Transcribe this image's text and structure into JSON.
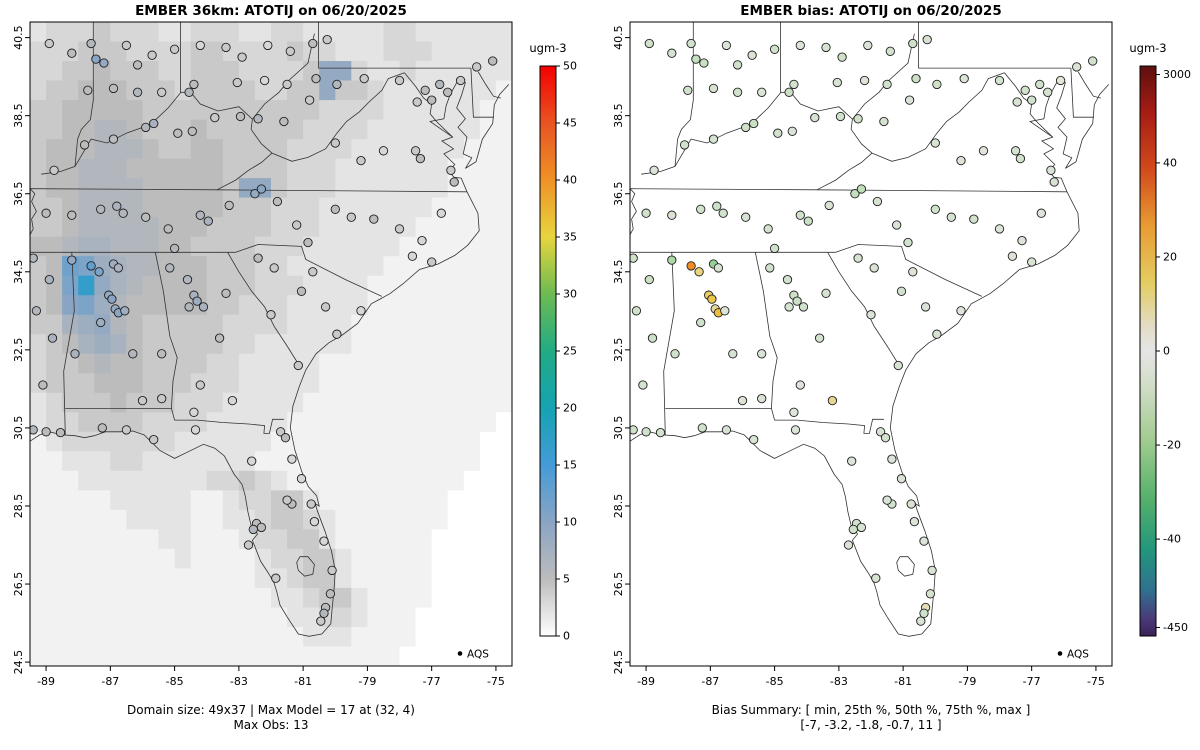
{
  "figure": {
    "background_color": "#ffffff",
    "legend_label": "AQS"
  },
  "axes": {
    "xlim": [
      -89.5,
      -74.5
    ],
    "ylim": [
      24.4,
      40.9
    ],
    "x_ticks": [
      -89,
      -87,
      -85,
      -83,
      -81,
      -79,
      -77,
      -75
    ],
    "y_ticks": [
      24.5,
      26.5,
      28.5,
      30.5,
      32.5,
      34.5,
      36.5,
      38.5,
      40.5
    ]
  },
  "chart_data": [
    {
      "type": "heatmap",
      "title": "EMBER 36km: ATOTIJ on 06/20/2025",
      "domain_size": "49x37",
      "max_model": 17,
      "max_model_at": "(32, 4)",
      "max_obs": 13,
      "caption": [
        "Domain size: 49x37 | Max Model = 17 at (32, 4)",
        "Max Obs: 13"
      ],
      "point_field": "obs",
      "colorbar": {
        "label": "ugm-3",
        "domain": [
          0,
          50
        ],
        "ticks": [
          0,
          5,
          10,
          15,
          20,
          25,
          30,
          35,
          40,
          45,
          50
        ],
        "stops": [
          [
            0,
            "#ffffff"
          ],
          [
            5,
            "#bcbcbc"
          ],
          [
            10,
            "#8aa5c4"
          ],
          [
            15,
            "#449bd8"
          ],
          [
            20,
            "#16a3b2"
          ],
          [
            25,
            "#22ab84"
          ],
          [
            30,
            "#6cbb51"
          ],
          [
            35,
            "#e8d53e"
          ],
          [
            40,
            "#ef9227"
          ],
          [
            45,
            "#e85422"
          ],
          [
            50,
            "#f40000"
          ]
        ]
      },
      "raster": {
        "x0": -89.5,
        "y0_top": 40.9,
        "cell": 0.5,
        "rows": [
          [
            "2333433322",
            "3332233222",
            "2233222222"
          ],
          [
            "3334443333",
            "4433334332",
            "2233322222"
          ],
          [
            "3344544433",
            "4443333499",
            "3223222222"
          ],
          [
            "3445554443",
            "4444334494",
            "4322222221"
          ],
          [
            "4455555444",
            "4444444433",
            "3322222211"
          ],
          [
            "4455665444",
            "5444444333",
            "3222222211"
          ],
          [
            "4555666544",
            "5544443333",
            "2222222111"
          ],
          [
            "4556665555",
            "5544443332",
            "2222221111"
          ],
          [
            "4556666555",
            "5549943332",
            "2222221111"
          ],
          [
            "4456666555",
            "5544433322",
            "2222211111"
          ],
          [
            "4456666655",
            "5444433322",
            "2222111111"
          ],
          [
            "5567766655",
            "4444333222",
            "2221111111"
          ],
          [
            "45cb876655",
            "5444332222",
            "2211111111"
          ],
          [
            "45bh976555",
            "5444333222",
            "2111111111"
          ],
          [
            "45ab865555",
            "5443332222",
            "2111111111"
          ],
          [
            "4478965444",
            "4433332222",
            "1111111111"
          ],
          [
            "3457875444",
            "4433222222",
            "1111111111"
          ],
          [
            "3445655444",
            "4332222211",
            "1111111111"
          ],
          [
            "3444555444",
            "3332222211",
            "1111111111"
          ],
          [
            "2344454443",
            "3322222111",
            "1111111111"
          ],
          [
            "2334444333",
            "3222221111",
            "1111111110"
          ],
          [
            "1233333332",
            "2222211111",
            "1111111100"
          ],
          [
            "1122233222",
            "2222111111",
            "1111111100"
          ],
          [
            "1112222222",
            "2334321111",
            "1111111000"
          ],
          [
            "1111122222",
            "1123344211",
            "1111110000"
          ],
          [
            "1111112222",
            "1122344321",
            "1111110000"
          ],
          [
            "1111111122",
            "1112334421",
            "1111100000"
          ],
          [
            "1111111112",
            "1111233442",
            "1111100000"
          ],
          [
            "1111111111",
            "1111223442",
            "1111100000"
          ],
          [
            "1111111111",
            "1111122344",
            "2111100000"
          ],
          [
            "1111111111",
            "1111112233",
            "2111000000"
          ],
          [
            "1111111111",
            "1111111222",
            "1111000000"
          ],
          [
            "1111111111",
            "1111111111",
            "1110000000"
          ]
        ]
      }
    },
    {
      "type": "scatter",
      "title": "EMBER bias: ATOTIJ on 06/20/2025",
      "bias_summary": {
        "min": -7,
        "p25": -3.2,
        "p50": -1.8,
        "p75": -0.7,
        "max": 11
      },
      "caption": [
        "Bias Summary: [ min, 25th %, 50th %, 75th %, max ]",
        "[-7,  -3.2,  -1.8,  -0.7,  11 ]"
      ],
      "point_field": "bias",
      "colorbar": {
        "label": "ugm-3",
        "ticks": [
          [
            "3000",
            0.015
          ],
          [
            "40",
            0.17
          ],
          [
            "20",
            0.335
          ],
          [
            "0",
            0.5
          ],
          [
            "-20",
            0.665
          ],
          [
            "-40",
            0.83
          ],
          [
            "-450",
            0.985
          ]
        ],
        "stops_frac": [
          [
            0,
            "#5e0f0f"
          ],
          [
            0.08,
            "#a51c14"
          ],
          [
            0.18,
            "#d2491c"
          ],
          [
            0.28,
            "#e89b32"
          ],
          [
            0.38,
            "#e3cd62"
          ],
          [
            0.46,
            "#e3ddc9"
          ],
          [
            0.5,
            "#e5e5e5"
          ],
          [
            0.56,
            "#d2ddc8"
          ],
          [
            0.66,
            "#a0cb8f"
          ],
          [
            0.76,
            "#55b06b"
          ],
          [
            0.85,
            "#22967c"
          ],
          [
            0.92,
            "#31708f"
          ],
          [
            0.97,
            "#4a3a78"
          ],
          [
            1,
            "#3a2158"
          ]
        ]
      },
      "point_scale": {
        "stops": [
          [
            -40,
            "#168a8a"
          ],
          [
            -20,
            "#57b26e"
          ],
          [
            -8,
            "#8cc98c"
          ],
          [
            -4,
            "#b9dcb2"
          ],
          [
            -1.5,
            "#d7e3d2"
          ],
          [
            0,
            "#e7e7e5"
          ],
          [
            2,
            "#e6d9a0"
          ],
          [
            5,
            "#ecc94b"
          ],
          [
            8,
            "#f0a830"
          ],
          [
            12,
            "#ee8420"
          ]
        ]
      }
    }
  ],
  "stations": [
    [
      -88.9,
      40.35,
      4,
      -2
    ],
    [
      -88.2,
      40.1,
      5,
      -1.5
    ],
    [
      -87.6,
      40.35,
      6,
      -2
    ],
    [
      -87.45,
      39.95,
      10,
      -3
    ],
    [
      -87.2,
      39.85,
      9,
      -2.6
    ],
    [
      -86.5,
      40.3,
      4,
      -1.2
    ],
    [
      -86.15,
      39.8,
      5,
      -2
    ],
    [
      -85.7,
      40.05,
      4,
      -1.4
    ],
    [
      -85.0,
      40.2,
      4,
      -2
    ],
    [
      -84.2,
      40.3,
      3,
      -1
    ],
    [
      -83.4,
      40.25,
      4,
      -1.6
    ],
    [
      -82.9,
      40.0,
      4,
      -2.1
    ],
    [
      -82.1,
      40.3,
      3,
      -1
    ],
    [
      -81.4,
      40.15,
      4,
      -1.8
    ],
    [
      -80.7,
      40.35,
      5,
      -2.2
    ],
    [
      -80.25,
      40.45,
      4,
      -1.5
    ],
    [
      -87.7,
      39.15,
      5,
      -2
    ],
    [
      -86.9,
      39.2,
      5,
      -1.6
    ],
    [
      -86.15,
      39.1,
      6,
      -2.2
    ],
    [
      -85.4,
      39.1,
      4,
      -1.1
    ],
    [
      -84.55,
      39.1,
      6,
      -2.4
    ],
    [
      -84.4,
      39.3,
      5,
      -1.9
    ],
    [
      -83.05,
      39.35,
      4,
      -1.4
    ],
    [
      -82.2,
      39.4,
      3,
      -1
    ],
    [
      -81.5,
      39.3,
      4,
      -2
    ],
    [
      -80.6,
      39.45,
      5,
      -2.5
    ],
    [
      -79.95,
      39.3,
      6,
      -2.1
    ],
    [
      -79.1,
      39.45,
      4,
      -1.2
    ],
    [
      -78.0,
      39.4,
      4,
      -1.5
    ],
    [
      -77.2,
      39.15,
      5,
      -2
    ],
    [
      -76.75,
      39.3,
      6,
      -2.2
    ],
    [
      -76.5,
      39.1,
      5,
      -1.7
    ],
    [
      -77.0,
      38.9,
      5,
      -2
    ],
    [
      -77.45,
      38.85,
      4,
      -1.4
    ],
    [
      -76.1,
      39.4,
      4,
      0.5
    ],
    [
      -75.6,
      39.75,
      4,
      -1.3
    ],
    [
      -75.1,
      39.9,
      5,
      -1.8
    ],
    [
      -88.75,
      37.1,
      4,
      -1.1
    ],
    [
      -87.8,
      37.75,
      5,
      -2
    ],
    [
      -86.9,
      37.9,
      5,
      -1.5
    ],
    [
      -85.9,
      38.2,
      6,
      -2.1
    ],
    [
      -85.65,
      38.3,
      7,
      -2.6
    ],
    [
      -84.9,
      38.05,
      5,
      -1.9
    ],
    [
      -84.45,
      38.1,
      5,
      -1.2
    ],
    [
      -83.75,
      38.45,
      4,
      -1.5
    ],
    [
      -82.95,
      38.48,
      5,
      -2
    ],
    [
      -82.4,
      38.42,
      6,
      -2.2
    ],
    [
      -81.6,
      38.35,
      5,
      -1.7
    ],
    [
      -80.8,
      38.9,
      4,
      -1
    ],
    [
      -80.0,
      37.8,
      4,
      -1.3
    ],
    [
      -79.2,
      37.35,
      4,
      -1
    ],
    [
      -78.5,
      37.6,
      3,
      -0.7
    ],
    [
      -77.5,
      37.6,
      4,
      -1.5
    ],
    [
      -77.35,
      37.4,
      5,
      -1.8
    ],
    [
      -76.4,
      37.1,
      4,
      -1.2
    ],
    [
      -76.3,
      36.8,
      5,
      -1.6
    ],
    [
      -89.0,
      36.0,
      5,
      -2
    ],
    [
      -88.2,
      35.95,
      5,
      -1.4
    ],
    [
      -87.3,
      36.1,
      6,
      -2
    ],
    [
      -86.8,
      36.18,
      7,
      -2.5
    ],
    [
      -86.6,
      36.0,
      6,
      -1.9
    ],
    [
      -85.9,
      35.9,
      5,
      -1.5
    ],
    [
      -85.2,
      35.6,
      5,
      -1.7
    ],
    [
      -85.0,
      35.1,
      6,
      -2.2
    ],
    [
      -84.2,
      35.95,
      6,
      -2
    ],
    [
      -83.95,
      35.8,
      7,
      -2.6
    ],
    [
      -83.3,
      36.2,
      5,
      -1.4
    ],
    [
      -82.5,
      36.5,
      9,
      -3.1
    ],
    [
      -82.3,
      36.62,
      10,
      -3.4
    ],
    [
      -81.8,
      36.3,
      5,
      -1.6
    ],
    [
      -81.2,
      35.7,
      4,
      -1.2
    ],
    [
      -80.85,
      35.25,
      5,
      -1.8
    ],
    [
      -80.0,
      36.1,
      5,
      -2
    ],
    [
      -79.5,
      35.9,
      4,
      -1.5
    ],
    [
      -78.8,
      35.85,
      5,
      -1.9
    ],
    [
      -78.0,
      35.6,
      4,
      -1.1
    ],
    [
      -77.3,
      35.3,
      3,
      -0.9
    ],
    [
      -76.7,
      36.0,
      3,
      -0.7
    ],
    [
      -77.6,
      34.9,
      3,
      -1
    ],
    [
      -77.0,
      34.75,
      4,
      -1.3
    ],
    [
      -82.4,
      34.85,
      5,
      -1.6
    ],
    [
      -81.9,
      34.6,
      4,
      -1.3
    ],
    [
      -81.05,
      34.0,
      5,
      -1.8
    ],
    [
      -80.7,
      34.5,
      4,
      -1.1
    ],
    [
      -80.3,
      33.6,
      4,
      -1.2
    ],
    [
      -79.95,
      32.9,
      4,
      -1.5
    ],
    [
      -79.2,
      33.5,
      3,
      -0.9
    ],
    [
      -89.4,
      34.85,
      6,
      -2.1
    ],
    [
      -88.9,
      34.3,
      7,
      -2.5
    ],
    [
      -89.3,
      33.5,
      6,
      -2
    ],
    [
      -88.8,
      32.8,
      7,
      -2.3
    ],
    [
      -89.1,
      31.6,
      5,
      -1.7
    ],
    [
      -89.4,
      30.45,
      6,
      -2.3
    ],
    [
      -89.0,
      30.4,
      5,
      -2
    ],
    [
      -88.55,
      30.38,
      5,
      -1.8
    ],
    [
      -88.2,
      34.8,
      9,
      -5
    ],
    [
      -87.6,
      34.65,
      13,
      11
    ],
    [
      -87.35,
      34.5,
      11,
      3.2
    ],
    [
      -86.9,
      34.7,
      8,
      -7
    ],
    [
      -86.75,
      34.6,
      7,
      -1.6
    ],
    [
      -87.05,
      33.9,
      9,
      4.1
    ],
    [
      -86.95,
      33.8,
      10,
      5.2
    ],
    [
      -86.85,
      33.55,
      9,
      2.1
    ],
    [
      -86.75,
      33.45,
      10,
      6.1
    ],
    [
      -86.55,
      33.5,
      8,
      -1.1
    ],
    [
      -87.3,
      33.2,
      8,
      -2.2
    ],
    [
      -88.1,
      32.4,
      7,
      -2
    ],
    [
      -86.3,
      32.4,
      6,
      -1.5
    ],
    [
      -85.4,
      32.4,
      5,
      -1.2
    ],
    [
      -86.0,
      31.2,
      4,
      -1
    ],
    [
      -85.4,
      31.25,
      4,
      -1.3
    ],
    [
      -85.15,
      34.6,
      6,
      -2
    ],
    [
      -84.6,
      34.3,
      6,
      -1.8
    ],
    [
      -84.4,
      33.9,
      7,
      -2.2
    ],
    [
      -84.3,
      33.75,
      8,
      -2.6
    ],
    [
      -84.1,
      33.6,
      7,
      -2
    ],
    [
      -84.55,
      33.6,
      6,
      -1.6
    ],
    [
      -83.4,
      33.95,
      5,
      -1.5
    ],
    [
      -83.6,
      32.8,
      5,
      -1.8
    ],
    [
      -82.0,
      33.4,
      4,
      -1.2
    ],
    [
      -81.15,
      32.1,
      4,
      -1.5
    ],
    [
      -84.2,
      31.6,
      4,
      -0.9
    ],
    [
      -83.2,
      31.2,
      3,
      2.6
    ],
    [
      -84.4,
      30.9,
      3,
      -0.8
    ],
    [
      -87.25,
      30.5,
      5,
      -2
    ],
    [
      -86.5,
      30.45,
      4,
      -1.5
    ],
    [
      -85.65,
      30.2,
      4,
      -1.2
    ],
    [
      -84.35,
      30.45,
      3,
      -1
    ],
    [
      -82.6,
      29.65,
      3,
      -1
    ],
    [
      -81.7,
      30.4,
      4,
      -1.5
    ],
    [
      -81.55,
      30.25,
      5,
      -1.9
    ],
    [
      -81.35,
      29.7,
      3,
      -1
    ],
    [
      -81.05,
      29.2,
      3,
      -1.2
    ],
    [
      -80.75,
      28.55,
      4,
      -1.5
    ],
    [
      -81.35,
      28.55,
      5,
      -1.8
    ],
    [
      -81.5,
      28.65,
      4,
      -1.3
    ],
    [
      -82.45,
      28.05,
      5,
      -1.8
    ],
    [
      -82.55,
      27.9,
      6,
      -2.1
    ],
    [
      -82.3,
      27.95,
      5,
      -1.5
    ],
    [
      -82.7,
      27.5,
      4,
      -1.2
    ],
    [
      -81.85,
      26.65,
      4,
      -1.6
    ],
    [
      -80.65,
      28.1,
      3,
      -1
    ],
    [
      -80.35,
      27.6,
      3,
      -1.1
    ],
    [
      -80.1,
      26.85,
      4,
      -1.4
    ],
    [
      -80.15,
      26.25,
      5,
      -1.7
    ],
    [
      -80.3,
      25.9,
      5,
      1.4
    ],
    [
      -80.35,
      25.75,
      6,
      -2
    ],
    [
      -80.45,
      25.55,
      4,
      -1.2
    ]
  ]
}
